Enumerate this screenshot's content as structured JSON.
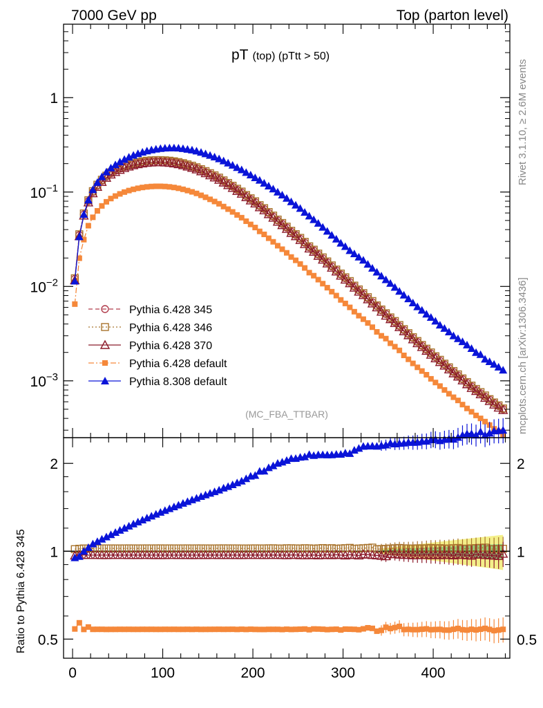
{
  "header": {
    "energy_label": "7000 GeV pp",
    "process_label": "Top (parton level)"
  },
  "side_labels": {
    "rivet": "Rivet 3.1.10, ≥ 2.6M events",
    "mcplots": "mcplots.cern.ch [arXiv:1306.3436]"
  },
  "colors": {
    "p345": "#b03a4a",
    "p346": "#a8732c",
    "p370": "#8b1a2a",
    "p6def": "#f5883a",
    "p8def": "#0a14d8",
    "band_yellow": "#f4f08a",
    "band_green": "#8fe08f"
  },
  "chart_data": [
    {
      "type": "scatter",
      "panel": "main",
      "title": "pT",
      "title_suffix": "(top) (pTtt > 50)",
      "watermark": "(MC_FBA_TTBAR)",
      "yscale": "log",
      "xlim": [
        -10,
        485
      ],
      "ylim": [
        0.00025,
        6
      ],
      "yticks": [
        {
          "base": "1",
          "exp": ""
        },
        {
          "base": "10",
          "exp": "−1"
        },
        {
          "base": "10",
          "exp": "−2"
        },
        {
          "base": "10",
          "exp": "−3"
        }
      ],
      "legend_position": "bottom-left",
      "x": [
        2.5,
        7.5,
        12.5,
        17.5,
        22.5,
        27.5,
        32.5,
        37.5,
        42.5,
        47.5,
        52.5,
        57.5,
        62.5,
        67.5,
        72.5,
        77.5,
        82.5,
        87.5,
        92.5,
        97.5,
        102.5,
        107.5,
        112.5,
        117.5,
        122.5,
        127.5,
        132.5,
        137.5,
        142.5,
        147.5,
        152.5,
        157.5,
        162.5,
        167.5,
        172.5,
        177.5,
        182.5,
        187.5,
        192.5,
        197.5,
        202.5,
        207.5,
        212.5,
        217.5,
        222.5,
        227.5,
        232.5,
        237.5,
        242.5,
        247.5,
        252.5,
        257.5,
        262.5,
        267.5,
        272.5,
        277.5,
        282.5,
        287.5,
        292.5,
        297.5,
        302.5,
        307.5,
        312.5,
        317.5,
        322.5,
        327.5,
        332.5,
        337.5,
        342.5,
        347.5,
        352.5,
        357.5,
        362.5,
        367.5,
        372.5,
        377.5,
        382.5,
        387.5,
        392.5,
        397.5,
        402.5,
        407.5,
        412.5,
        417.5,
        422.5,
        427.5,
        432.5,
        437.5,
        442.5,
        447.5,
        452.5,
        457.5,
        462.5,
        467.5,
        472.5,
        477.5
      ],
      "series": [
        {
          "name": "Pythia 6.428 345",
          "color_key": "p345",
          "marker": "open-circle",
          "line": "dashed",
          "values": [
            0.012,
            0.035,
            0.058,
            0.08,
            0.1,
            0.117,
            0.132,
            0.146,
            0.158,
            0.168,
            0.177,
            0.185,
            0.192,
            0.198,
            0.203,
            0.207,
            0.21,
            0.212,
            0.213,
            0.213,
            0.212,
            0.21,
            0.207,
            0.203,
            0.198,
            0.192,
            0.186,
            0.179,
            0.171,
            0.163,
            0.155,
            0.147,
            0.139,
            0.13,
            0.122,
            0.114,
            0.106,
            0.099,
            0.091,
            0.084,
            0.078,
            0.071,
            0.066,
            0.06,
            0.055,
            0.05,
            0.046,
            0.042,
            0.038,
            0.035,
            0.032,
            0.029,
            0.026,
            0.024,
            0.0218,
            0.0198,
            0.018,
            0.0163,
            0.0148,
            0.0134,
            0.0122,
            0.0111,
            0.01,
            0.0091,
            0.0083,
            0.0075,
            0.0068,
            0.0062,
            0.0056,
            0.0051,
            0.0046,
            0.0042,
            0.0038,
            0.00345,
            0.00313,
            0.00284,
            0.00258,
            0.00235,
            0.00214,
            0.00195,
            0.00178,
            0.00163,
            0.00149,
            0.00136,
            0.00124,
            0.00114,
            0.00104,
            0.00095,
            0.00087,
            0.0008,
            0.00074,
            0.00068,
            0.00063,
            0.00058,
            0.00054,
            0.0005
          ]
        },
        {
          "name": "Pythia 6.428 346",
          "color_key": "p346",
          "marker": "open-square",
          "line": "dotted",
          "values": [
            0.0122,
            0.0357,
            0.0593,
            0.0818,
            0.1022,
            0.1196,
            0.135,
            0.1493,
            0.1616,
            0.1718,
            0.181,
            0.1892,
            0.1964,
            0.2025,
            0.2076,
            0.2117,
            0.2148,
            0.2168,
            0.2179,
            0.2179,
            0.2168,
            0.2148,
            0.2117,
            0.2076,
            0.2025,
            0.1964,
            0.1902,
            0.1831,
            0.1749,
            0.1667,
            0.1585,
            0.1503,
            0.1422,
            0.133,
            0.1248,
            0.1166,
            0.1084,
            0.1012,
            0.093,
            0.0859,
            0.0798,
            0.0726,
            0.0675,
            0.0614,
            0.0563,
            0.0511,
            0.047,
            0.043,
            0.0389,
            0.0358,
            0.0327,
            0.0297,
            0.0266,
            0.0245,
            0.0223,
            0.0203,
            0.0184,
            0.0167,
            0.0151,
            0.0137,
            0.0125,
            0.0114,
            0.0102,
            0.0093,
            0.0085,
            0.0077,
            0.007,
            0.0063,
            0.0057,
            0.0052,
            0.0047,
            0.0043,
            0.0039,
            0.00353,
            0.0032,
            0.0029,
            0.00264,
            0.0024,
            0.00219,
            0.002,
            0.00182,
            0.00167,
            0.00152,
            0.00139,
            0.00127,
            0.00117,
            0.00106,
            0.00097,
            0.00089,
            0.00082,
            0.00076,
            0.0007,
            0.00064,
            0.00059,
            0.00055,
            0.00051
          ]
        },
        {
          "name": "Pythia 6.428 370",
          "color_key": "p370",
          "marker": "open-triangle",
          "line": "solid",
          "values": [
            0.0116,
            0.034,
            0.0563,
            0.0776,
            0.097,
            0.1135,
            0.128,
            0.1416,
            0.1533,
            0.163,
            0.1717,
            0.1795,
            0.1862,
            0.1921,
            0.1969,
            0.2008,
            0.2037,
            0.2056,
            0.2066,
            0.2066,
            0.2056,
            0.2037,
            0.2008,
            0.1969,
            0.1921,
            0.1862,
            0.1804,
            0.1736,
            0.1659,
            0.1581,
            0.1504,
            0.1426,
            0.1348,
            0.1261,
            0.1183,
            0.1106,
            0.1028,
            0.096,
            0.0883,
            0.0815,
            0.0757,
            0.0689,
            0.064,
            0.0582,
            0.0534,
            0.0485,
            0.0446,
            0.0407,
            0.0369,
            0.034,
            0.031,
            0.0281,
            0.0252,
            0.0233,
            0.0211,
            0.0192,
            0.0175,
            0.0158,
            0.0144,
            0.013,
            0.0118,
            0.0108,
            0.0097,
            0.0088,
            0.0081,
            0.0073,
            0.0066,
            0.006,
            0.0054,
            0.0049,
            0.0045,
            0.0041,
            0.0037,
            0.00335,
            0.00304,
            0.00275,
            0.0025,
            0.00228,
            0.00208,
            0.00189,
            0.00173,
            0.00158,
            0.00145,
            0.00132,
            0.0012,
            0.00111,
            0.00101,
            0.00092,
            0.00084,
            0.00078,
            0.00072,
            0.00066,
            0.00061,
            0.00056,
            0.00052,
            0.00049
          ]
        },
        {
          "name": "Pythia 6.428 default",
          "color_key": "p6def",
          "marker": "filled-square",
          "line": "dashdot",
          "values": [
            0.0065,
            0.0199,
            0.0313,
            0.044,
            0.054,
            0.0632,
            0.0713,
            0.0788,
            0.0853,
            0.0907,
            0.0956,
            0.0999,
            0.1037,
            0.1069,
            0.1096,
            0.1118,
            0.1134,
            0.1145,
            0.115,
            0.115,
            0.1145,
            0.1134,
            0.1118,
            0.1096,
            0.1069,
            0.1037,
            0.1004,
            0.0967,
            0.0923,
            0.088,
            0.0837,
            0.0794,
            0.0751,
            0.0702,
            0.0659,
            0.0616,
            0.0572,
            0.0535,
            0.0491,
            0.0454,
            0.0421,
            0.0383,
            0.0356,
            0.0324,
            0.0297,
            0.027,
            0.0248,
            0.0227,
            0.0205,
            0.0189,
            0.0173,
            0.0157,
            0.014,
            0.013,
            0.0118,
            0.0107,
            0.0097,
            0.0088,
            0.008,
            0.0072,
            0.0066,
            0.006,
            0.0054,
            0.0049,
            0.0045,
            0.0041,
            0.0037,
            0.0033,
            0.003,
            0.0028,
            0.0025,
            0.0023,
            0.0021,
            0.00186,
            0.00169,
            0.00153,
            0.00139,
            0.00127,
            0.00116,
            0.00105,
            0.00096,
            0.00088,
            0.0008,
            0.00073,
            0.00067,
            0.00062,
            0.00056,
            0.00051,
            0.00047,
            0.00043,
            0.0004,
            0.00037,
            0.00034,
            0.00031,
            0.00029,
            0.00027
          ]
        },
        {
          "name": "Pythia 8.308 default",
          "color_key": "p8def",
          "marker": "filled-triangle",
          "line": "solid",
          "values": [
            0.0114,
            0.0336,
            0.058,
            0.0824,
            0.106,
            0.1263,
            0.1452,
            0.1635,
            0.1801,
            0.1949,
            0.2089,
            0.222,
            0.2342,
            0.2456,
            0.2558,
            0.265,
            0.273,
            0.2798,
            0.2854,
            0.2897,
            0.2926,
            0.294,
            0.294,
            0.2923,
            0.2891,
            0.2842,
            0.2791,
            0.2721,
            0.2635,
            0.2543,
            0.2449,
            0.2352,
            0.2253,
            0.2141,
            0.2033,
            0.1927,
            0.1819,
            0.1722,
            0.1614,
            0.1519,
            0.142,
            0.1335,
            0.1243,
            0.116,
            0.108,
            0.1001,
            0.093,
            0.086,
            0.079,
            0.0728,
            0.0672,
            0.0611,
            0.0558,
            0.0511,
            0.0467,
            0.0424,
            0.0385,
            0.0349,
            0.0318,
            0.0288,
            0.0265,
            0.024,
            0.0222,
            0.0205,
            0.019,
            0.0172,
            0.0156,
            0.0142,
            0.0129,
            0.0118,
            0.0108,
            0.0098,
            0.0089,
            0.0081,
            0.0074,
            0.0067,
            0.0061,
            0.0056,
            0.0051,
            0.0047,
            0.0043,
            0.0039,
            0.0036,
            0.0033,
            0.003,
            0.0028,
            0.0026,
            0.0024,
            0.0022,
            0.002,
            0.0019,
            0.0017,
            0.0016,
            0.0015,
            0.0014,
            0.0013
          ]
        }
      ]
    },
    {
      "type": "scatter",
      "panel": "ratio",
      "ylabel": "Ratio to Pythia 6.428 345",
      "yscale": "log",
      "xlim": [
        -10,
        485
      ],
      "ylim": [
        0.43,
        2.45
      ],
      "yticks": [
        0.5,
        1,
        2
      ],
      "xticks": [
        0,
        100,
        200,
        300,
        400
      ],
      "reference_band": {
        "x_start": 340,
        "color_keys": [
          "band_yellow",
          "band_green"
        ]
      },
      "series": [
        {
          "name": "Pythia 6.428 346",
          "ref": 1.02
        },
        {
          "name": "Pythia 6.428 370",
          "ref": 0.97
        },
        {
          "name": "Pythia 6.428 default",
          "ref": "ratio of default to 345"
        },
        {
          "name": "Pythia 8.308 default",
          "ref": "ratio of 8.308 to 345"
        }
      ]
    }
  ]
}
